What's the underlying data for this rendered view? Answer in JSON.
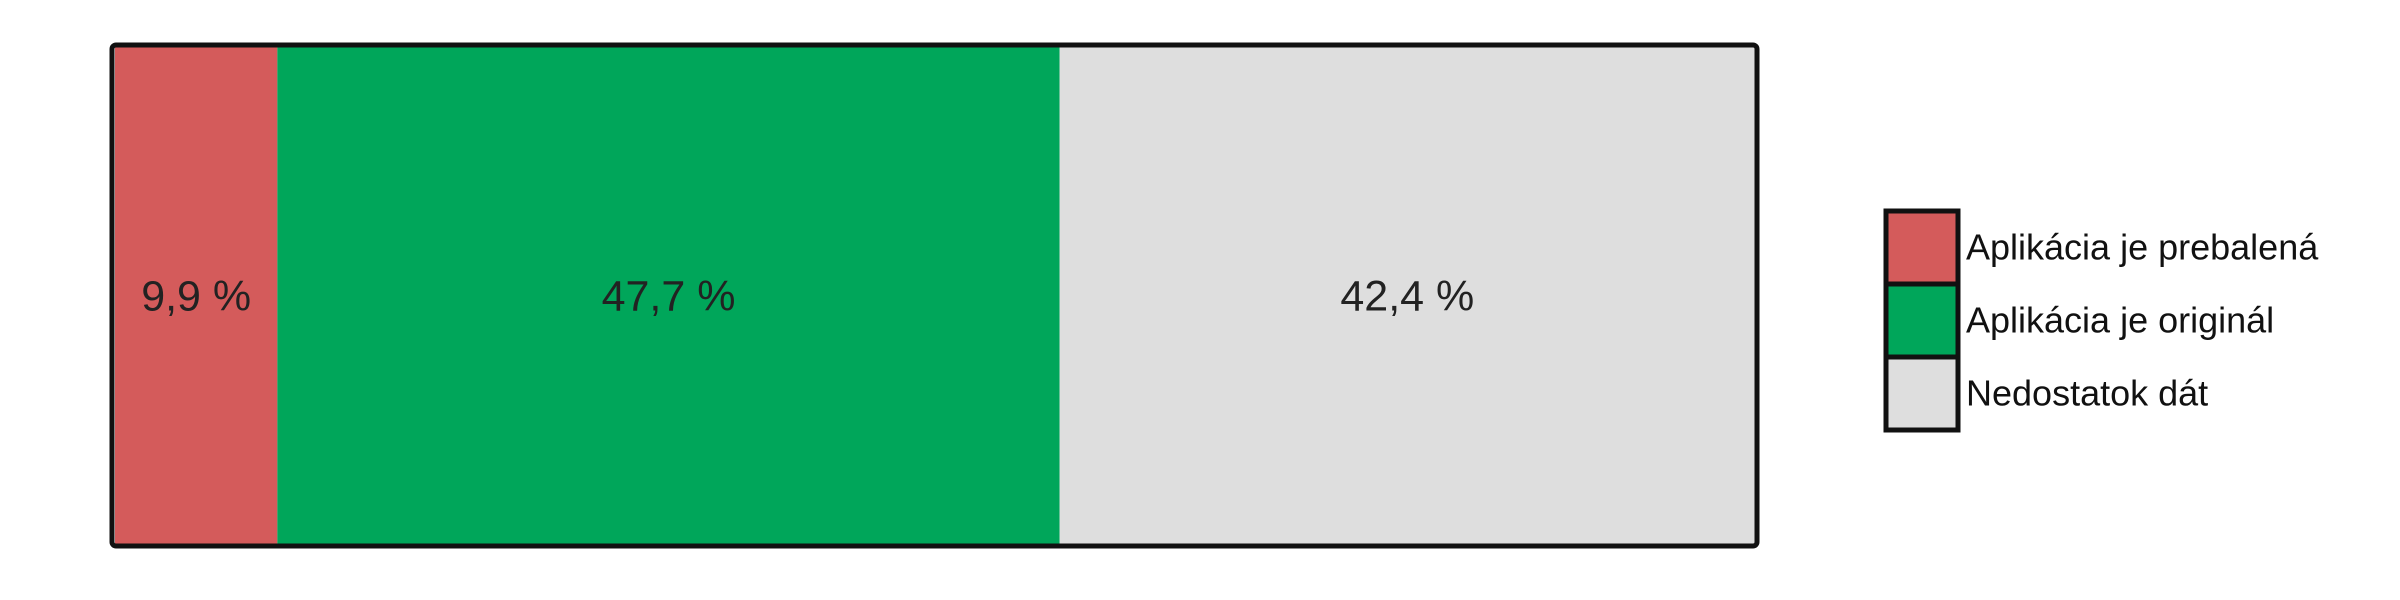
{
  "chart_data": {
    "type": "bar",
    "orientation": "horizontal-stacked",
    "categories": [
      ""
    ],
    "unit": "%",
    "series": [
      {
        "name": "Aplikácia je prebalená",
        "values": [
          9.9
        ],
        "label": "9,9 %",
        "color": "#d45b5b"
      },
      {
        "name": "Aplikácia je originál",
        "values": [
          47.7
        ],
        "label": "47,7 %",
        "color": "#00a65a"
      },
      {
        "name": "Nedostatok dát",
        "values": [
          42.4
        ],
        "label": "42,4 %",
        "color": "#dedede"
      }
    ],
    "xlim": [
      0,
      100
    ],
    "grid": false,
    "legend": "right"
  }
}
